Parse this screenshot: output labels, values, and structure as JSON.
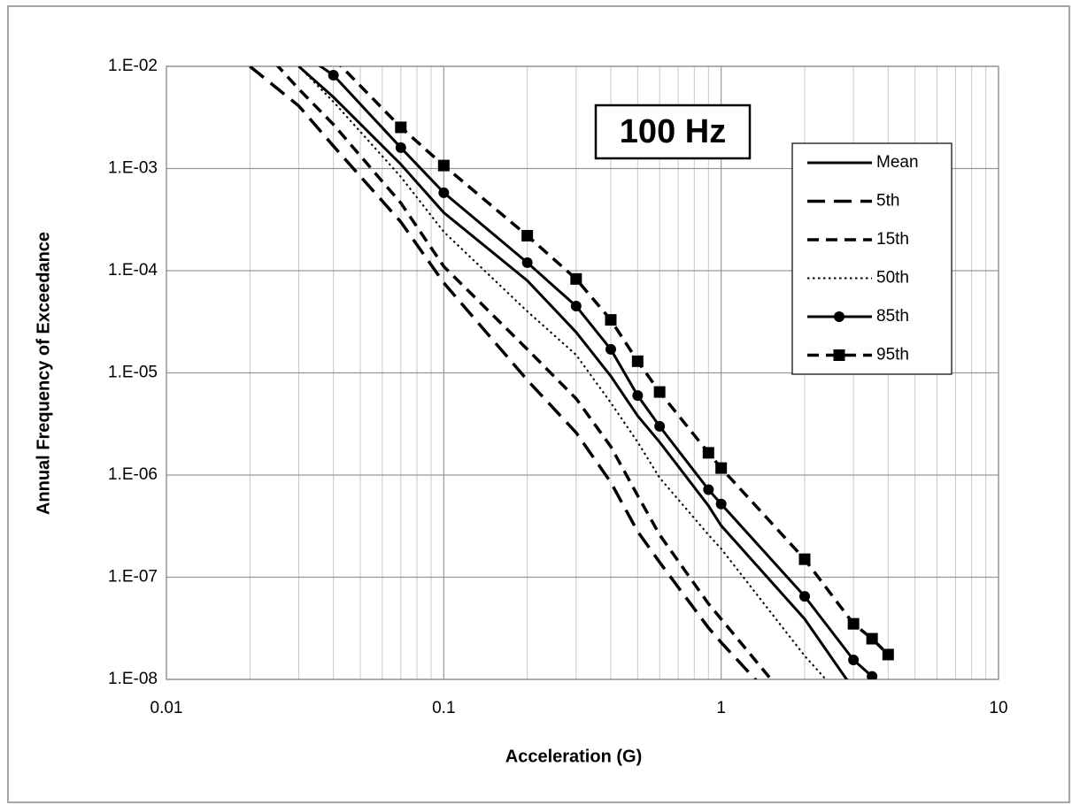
{
  "chart_data": {
    "type": "line",
    "xlabel": "Acceleration (G)",
    "ylabel": "Annual Frequency of Exceedance",
    "annotation": "100 Hz",
    "xscale": "log",
    "yscale": "log",
    "grid": true,
    "minor_grid": true,
    "legend": "upper right",
    "xlim": [
      0.01,
      10
    ],
    "ylim": [
      1e-08,
      0.01
    ],
    "xticks": [
      0.01,
      0.1,
      1,
      10
    ],
    "yticks": [
      {
        "value": 1e-08,
        "label": "1.E-08"
      },
      {
        "value": 1e-07,
        "label": "1.E-07"
      },
      {
        "value": 1e-06,
        "label": "1.E-06"
      },
      {
        "value": 1e-05,
        "label": "1.E-05"
      },
      {
        "value": 0.0001,
        "label": "1.E-04"
      },
      {
        "value": 0.001,
        "label": "1.E-03"
      },
      {
        "value": 0.01,
        "label": "1.E-02"
      }
    ],
    "x": [
      0.02,
      0.03,
      0.04,
      0.07,
      0.1,
      0.2,
      0.3,
      0.4,
      0.5,
      0.6,
      0.9,
      1,
      2,
      3,
      3.5,
      4
    ],
    "series": [
      {
        "name": "Mean",
        "color": "#000000",
        "dash": "solid",
        "marker": "none",
        "values": [
          null,
          0.01,
          0.005,
          0.0011,
          0.00037,
          8e-05,
          2.5e-05,
          9.3e-06,
          3.8e-06,
          2.1e-06,
          5e-07,
          3.2e-07,
          3.9e-08,
          8e-09,
          null,
          null
        ]
      },
      {
        "name": "5th",
        "color": "#000000",
        "dash": "long-dash",
        "marker": "none",
        "values": [
          0.01,
          0.0041,
          0.00166,
          0.0003,
          7.6e-05,
          8.5e-06,
          2.6e-06,
          8.5e-07,
          2.8e-07,
          1.4e-07,
          3.2e-08,
          2.3e-08,
          3e-09,
          null,
          null,
          null
        ]
      },
      {
        "name": "15th",
        "color": "#000000",
        "dash": "dash",
        "marker": "none",
        "values": [
          0.02,
          0.006,
          0.0027,
          0.00046,
          0.00011,
          1.7e-05,
          5.6e-06,
          1.9e-06,
          6.3e-07,
          2.6e-07,
          5.5e-08,
          3.9e-08,
          4e-09,
          null,
          null,
          null
        ]
      },
      {
        "name": "50th",
        "color": "#000000",
        "dash": "dot",
        "marker": "none",
        "values": [
          null,
          0.01,
          0.0045,
          0.00083,
          0.00024,
          4e-05,
          1.5e-05,
          5.1e-06,
          2.1e-06,
          9.4e-07,
          2.6e-07,
          1.9e-07,
          1.7e-08,
          5e-09,
          null,
          null
        ]
      },
      {
        "name": "85th",
        "color": "#000000",
        "dash": "solid",
        "marker": "circle",
        "values": [
          null,
          0.014,
          0.0082,
          0.0016,
          0.00058,
          0.00012,
          4.5e-05,
          1.7e-05,
          6e-06,
          3e-06,
          7.2e-07,
          5.2e-07,
          6.5e-08,
          1.55e-08,
          1.07e-08,
          null
        ]
      },
      {
        "name": "95th",
        "color": "#000000",
        "dash": "dash",
        "marker": "square",
        "values": [
          null,
          null,
          0.012,
          0.00253,
          0.00107,
          0.00022,
          8.3e-05,
          3.3e-05,
          1.3e-05,
          6.5e-06,
          1.65e-06,
          1.17e-06,
          1.5e-07,
          3.5e-08,
          2.5e-08,
          1.75e-08
        ]
      }
    ]
  }
}
